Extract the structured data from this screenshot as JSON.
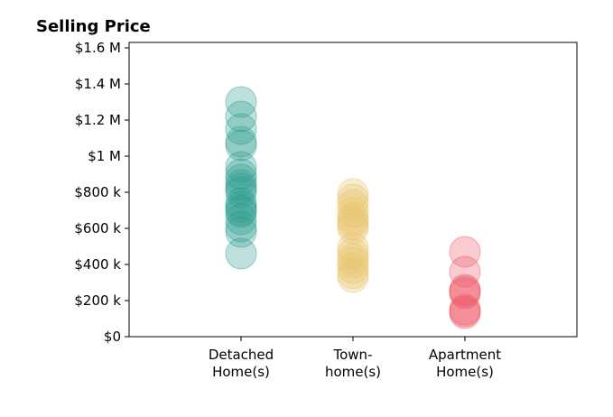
{
  "chart_data": {
    "type": "scatter",
    "title": "Selling Price",
    "xlabel": "",
    "ylabel": "",
    "categories": [
      [
        "Detached",
        "Home(s)"
      ],
      [
        "Town-",
        "home(s)"
      ],
      [
        "Apartment",
        "Home(s)"
      ]
    ],
    "yticks": [
      {
        "value": 0,
        "label": "$0"
      },
      {
        "value": 200000,
        "label": "$200 k"
      },
      {
        "value": 400000,
        "label": "$400 k"
      },
      {
        "value": 600000,
        "label": "$600 k"
      },
      {
        "value": 800000,
        "label": "$800 k"
      },
      {
        "value": 1000000,
        "label": "$1 M"
      },
      {
        "value": 1200000,
        "label": "$1.2 M"
      },
      {
        "value": 1400000,
        "label": "$1.4 M"
      },
      {
        "value": 1600000,
        "label": "$1.6 M"
      }
    ],
    "ylim": [
      0,
      1630000
    ],
    "grid": false,
    "series": [
      {
        "color": "#2a9d8f",
        "values": [
          1300000,
          1220000,
          1150000,
          1080000,
          1060000,
          940000,
          900000,
          870000,
          840000,
          820000,
          800000,
          740000,
          720000,
          700000,
          690000,
          650000,
          610000,
          580000,
          460000
        ]
      },
      {
        "color": "#e9c46a",
        "values": [
          790000,
          760000,
          730000,
          690000,
          660000,
          640000,
          620000,
          600000,
          490000,
          460000,
          430000,
          410000,
          380000,
          350000,
          330000
        ]
      },
      {
        "color": "#ef5566",
        "values": [
          470000,
          360000,
          260000,
          250000,
          240000,
          150000,
          140000,
          130000
        ]
      }
    ]
  }
}
